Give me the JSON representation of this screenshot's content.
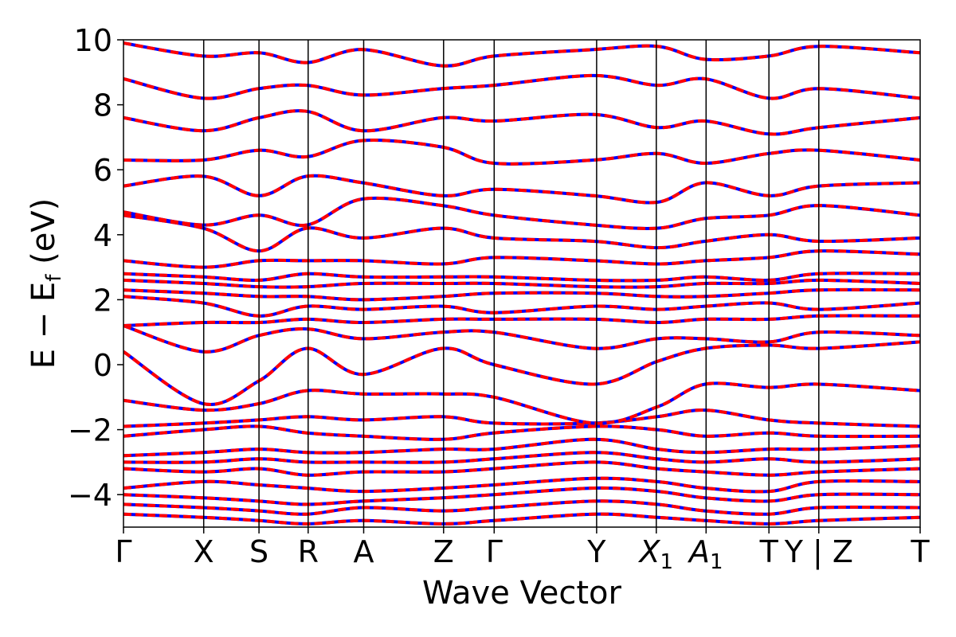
{
  "chart_data": {
    "type": "line",
    "title": "",
    "xlabel": "Wave Vector",
    "ylabel": "E − E",
    "ylabel_sub": "f",
    "ylabel_unit": " (eV)",
    "ylim": [
      -5,
      10
    ],
    "yticks": [
      {
        "value": -4,
        "label": "−4"
      },
      {
        "value": -2,
        "label": "−2"
      },
      {
        "value": 0,
        "label": "0"
      },
      {
        "value": 2,
        "label": "2"
      },
      {
        "value": 4,
        "label": "4"
      },
      {
        "value": 6,
        "label": "6"
      },
      {
        "value": 8,
        "label": "8"
      },
      {
        "value": 10,
        "label": "10"
      }
    ],
    "kpath_ticks": [
      {
        "k": 0.0,
        "label": "Γ",
        "sub": ""
      },
      {
        "k": 0.1007,
        "label": "X",
        "sub": ""
      },
      {
        "k": 0.1701,
        "label": "S",
        "sub": ""
      },
      {
        "k": 0.2318,
        "label": "R",
        "sub": ""
      },
      {
        "k": 0.3015,
        "label": "A",
        "sub": ""
      },
      {
        "k": 0.4018,
        "label": "Z",
        "sub": ""
      },
      {
        "k": 0.4653,
        "label": "Γ",
        "sub": ""
      },
      {
        "k": 0.5939,
        "label": "Y",
        "sub": ""
      },
      {
        "k": 0.6688,
        "label": "X",
        "sub": "1"
      },
      {
        "k": 0.7313,
        "label": "A",
        "sub": "1"
      },
      {
        "k": 0.8102,
        "label": "T",
        "sub": ""
      },
      {
        "k": 0.8728,
        "label": "Y | Z",
        "sub": ""
      },
      {
        "k": 1.0,
        "label": "T",
        "sub": ""
      }
    ],
    "grid": false,
    "legend": "none",
    "series": [
      {
        "color": "#0000ff",
        "style": "solid",
        "values": "all bands"
      },
      {
        "color": "#ff0000",
        "style": "dashed",
        "values": "all bands (overlay)"
      }
    ],
    "bands_approx": [
      [
        [
          0,
          -4.6
        ],
        [
          0.1,
          -4.7
        ],
        [
          0.17,
          -4.8
        ],
        [
          0.23,
          -4.9
        ],
        [
          0.3,
          -4.8
        ],
        [
          0.4,
          -4.9
        ],
        [
          0.465,
          -4.8
        ],
        [
          0.59,
          -4.6
        ],
        [
          0.67,
          -4.7
        ],
        [
          0.73,
          -4.8
        ],
        [
          0.81,
          -4.9
        ],
        [
          0.873,
          -4.8
        ],
        [
          1.0,
          -4.7
        ]
      ],
      [
        [
          0,
          -4.3
        ],
        [
          0.1,
          -4.4
        ],
        [
          0.17,
          -4.5
        ],
        [
          0.23,
          -4.6
        ],
        [
          0.3,
          -4.4
        ],
        [
          0.4,
          -4.5
        ],
        [
          0.465,
          -4.4
        ],
        [
          0.59,
          -4.2
        ],
        [
          0.67,
          -4.3
        ],
        [
          0.73,
          -4.5
        ],
        [
          0.81,
          -4.6
        ],
        [
          0.873,
          -4.4
        ],
        [
          1.0,
          -4.4
        ]
      ],
      [
        [
          0,
          -4.0
        ],
        [
          0.1,
          -4.1
        ],
        [
          0.17,
          -4.2
        ],
        [
          0.23,
          -4.3
        ],
        [
          0.3,
          -4.2
        ],
        [
          0.4,
          -4.1
        ],
        [
          0.465,
          -4.0
        ],
        [
          0.59,
          -3.8
        ],
        [
          0.67,
          -3.9
        ],
        [
          0.73,
          -4.1
        ],
        [
          0.81,
          -4.2
        ],
        [
          0.873,
          -4.0
        ],
        [
          1.0,
          -4.0
        ]
      ],
      [
        [
          0,
          -3.8
        ],
        [
          0.1,
          -3.6
        ],
        [
          0.17,
          -3.7
        ],
        [
          0.23,
          -3.8
        ],
        [
          0.3,
          -3.9
        ],
        [
          0.4,
          -3.8
        ],
        [
          0.465,
          -3.7
        ],
        [
          0.59,
          -3.5
        ],
        [
          0.67,
          -3.6
        ],
        [
          0.73,
          -3.8
        ],
        [
          0.81,
          -3.9
        ],
        [
          0.873,
          -3.6
        ],
        [
          1.0,
          -3.6
        ]
      ],
      [
        [
          0,
          -3.2
        ],
        [
          0.1,
          -3.3
        ],
        [
          0.17,
          -3.2
        ],
        [
          0.23,
          -3.4
        ],
        [
          0.3,
          -3.3
        ],
        [
          0.4,
          -3.3
        ],
        [
          0.465,
          -3.2
        ],
        [
          0.59,
          -3.0
        ],
        [
          0.67,
          -3.2
        ],
        [
          0.73,
          -3.3
        ],
        [
          0.81,
          -3.4
        ],
        [
          0.873,
          -3.3
        ],
        [
          1.0,
          -3.2
        ]
      ],
      [
        [
          0,
          -3.0
        ],
        [
          0.1,
          -3.0
        ],
        [
          0.17,
          -2.9
        ],
        [
          0.23,
          -3.0
        ],
        [
          0.3,
          -3.0
        ],
        [
          0.4,
          -3.0
        ],
        [
          0.465,
          -2.9
        ],
        [
          0.59,
          -2.7
        ],
        [
          0.67,
          -2.9
        ],
        [
          0.73,
          -3.0
        ],
        [
          0.81,
          -2.9
        ],
        [
          0.873,
          -3.0
        ],
        [
          1.0,
          -2.9
        ]
      ],
      [
        [
          0,
          -2.8
        ],
        [
          0.1,
          -2.7
        ],
        [
          0.17,
          -2.6
        ],
        [
          0.23,
          -2.7
        ],
        [
          0.3,
          -2.7
        ],
        [
          0.4,
          -2.6
        ],
        [
          0.465,
          -2.6
        ],
        [
          0.59,
          -2.3
        ],
        [
          0.67,
          -2.6
        ],
        [
          0.73,
          -2.7
        ],
        [
          0.81,
          -2.6
        ],
        [
          0.873,
          -2.6
        ],
        [
          1.0,
          -2.5
        ]
      ],
      [
        [
          0,
          -2.2
        ],
        [
          0.1,
          -2.0
        ],
        [
          0.17,
          -1.9
        ],
        [
          0.23,
          -2.1
        ],
        [
          0.3,
          -2.2
        ],
        [
          0.4,
          -2.3
        ],
        [
          0.465,
          -2.1
        ],
        [
          0.59,
          -1.9
        ],
        [
          0.67,
          -2.0
        ],
        [
          0.73,
          -2.2
        ],
        [
          0.81,
          -2.1
        ],
        [
          0.873,
          -2.2
        ],
        [
          1.0,
          -2.2
        ]
      ],
      [
        [
          0,
          -1.9
        ],
        [
          0.1,
          -1.8
        ],
        [
          0.17,
          -1.7
        ],
        [
          0.23,
          -1.6
        ],
        [
          0.3,
          -1.7
        ],
        [
          0.4,
          -1.6
        ],
        [
          0.465,
          -1.8
        ],
        [
          0.59,
          -1.8
        ],
        [
          0.67,
          -1.6
        ],
        [
          0.73,
          -1.4
        ],
        [
          0.81,
          -1.7
        ],
        [
          0.873,
          -1.8
        ],
        [
          1.0,
          -1.9
        ]
      ],
      [
        [
          0,
          -1.1
        ],
        [
          0.1,
          -1.4
        ],
        [
          0.17,
          -1.2
        ],
        [
          0.23,
          -0.8
        ],
        [
          0.3,
          -0.9
        ],
        [
          0.4,
          -0.9
        ],
        [
          0.465,
          -1.0
        ],
        [
          0.59,
          -1.8
        ],
        [
          0.67,
          -1.3
        ],
        [
          0.73,
          -0.6
        ],
        [
          0.81,
          -0.7
        ],
        [
          0.873,
          -0.6
        ],
        [
          1.0,
          -0.8
        ]
      ],
      [
        [
          0,
          0.4
        ],
        [
          0.1,
          -1.2
        ],
        [
          0.17,
          -0.5
        ],
        [
          0.23,
          0.5
        ],
        [
          0.3,
          -0.3
        ],
        [
          0.4,
          0.5
        ],
        [
          0.465,
          0.0
        ],
        [
          0.59,
          -0.6
        ],
        [
          0.67,
          0.1
        ],
        [
          0.73,
          0.5
        ],
        [
          0.81,
          0.6
        ],
        [
          0.873,
          0.5
        ],
        [
          1.0,
          0.7
        ]
      ],
      [
        [
          0,
          1.2
        ],
        [
          0.1,
          0.4
        ],
        [
          0.17,
          0.9
        ],
        [
          0.23,
          1.1
        ],
        [
          0.3,
          0.8
        ],
        [
          0.4,
          1.0
        ],
        [
          0.465,
          1.0
        ],
        [
          0.59,
          0.5
        ],
        [
          0.67,
          0.8
        ],
        [
          0.73,
          0.8
        ],
        [
          0.81,
          0.7
        ],
        [
          0.873,
          1.0
        ],
        [
          1.0,
          0.9
        ]
      ],
      [
        [
          0,
          1.2
        ],
        [
          0.1,
          1.3
        ],
        [
          0.17,
          1.3
        ],
        [
          0.23,
          1.4
        ],
        [
          0.3,
          1.3
        ],
        [
          0.4,
          1.4
        ],
        [
          0.465,
          1.4
        ],
        [
          0.59,
          1.4
        ],
        [
          0.67,
          1.3
        ],
        [
          0.73,
          1.4
        ],
        [
          0.81,
          1.4
        ],
        [
          0.873,
          1.5
        ],
        [
          1.0,
          1.5
        ]
      ],
      [
        [
          0,
          2.1
        ],
        [
          0.1,
          1.9
        ],
        [
          0.17,
          1.5
        ],
        [
          0.23,
          1.8
        ],
        [
          0.3,
          1.7
        ],
        [
          0.4,
          1.8
        ],
        [
          0.465,
          1.6
        ],
        [
          0.59,
          1.8
        ],
        [
          0.67,
          1.7
        ],
        [
          0.73,
          1.8
        ],
        [
          0.81,
          1.9
        ],
        [
          0.873,
          1.7
        ],
        [
          1.0,
          1.9
        ]
      ],
      [
        [
          0,
          2.3
        ],
        [
          0.1,
          2.2
        ],
        [
          0.17,
          2.1
        ],
        [
          0.23,
          2.1
        ],
        [
          0.3,
          2.0
        ],
        [
          0.4,
          2.1
        ],
        [
          0.465,
          2.2
        ],
        [
          0.59,
          2.2
        ],
        [
          0.67,
          2.1
        ],
        [
          0.73,
          2.1
        ],
        [
          0.81,
          2.2
        ],
        [
          0.873,
          2.3
        ],
        [
          1.0,
          2.3
        ]
      ],
      [
        [
          0,
          2.6
        ],
        [
          0.1,
          2.5
        ],
        [
          0.17,
          2.4
        ],
        [
          0.23,
          2.4
        ],
        [
          0.3,
          2.5
        ],
        [
          0.4,
          2.5
        ],
        [
          0.465,
          2.5
        ],
        [
          0.59,
          2.4
        ],
        [
          0.67,
          2.4
        ],
        [
          0.73,
          2.5
        ],
        [
          0.81,
          2.5
        ],
        [
          0.873,
          2.6
        ],
        [
          1.0,
          2.5
        ]
      ],
      [
        [
          0,
          2.8
        ],
        [
          0.1,
          2.7
        ],
        [
          0.17,
          2.6
        ],
        [
          0.23,
          2.8
        ],
        [
          0.3,
          2.7
        ],
        [
          0.4,
          2.7
        ],
        [
          0.465,
          2.7
        ],
        [
          0.59,
          2.6
        ],
        [
          0.67,
          2.6
        ],
        [
          0.73,
          2.7
        ],
        [
          0.81,
          2.6
        ],
        [
          0.873,
          2.8
        ],
        [
          1.0,
          2.8
        ]
      ],
      [
        [
          0,
          3.2
        ],
        [
          0.1,
          3.0
        ],
        [
          0.17,
          3.2
        ],
        [
          0.23,
          3.2
        ],
        [
          0.3,
          3.2
        ],
        [
          0.4,
          3.1
        ],
        [
          0.465,
          3.3
        ],
        [
          0.59,
          3.2
        ],
        [
          0.67,
          3.1
        ],
        [
          0.73,
          3.2
        ],
        [
          0.81,
          3.3
        ],
        [
          0.873,
          3.5
        ],
        [
          1.0,
          3.4
        ]
      ],
      [
        [
          0,
          4.6
        ],
        [
          0.1,
          4.2
        ],
        [
          0.17,
          3.5
        ],
        [
          0.23,
          4.2
        ],
        [
          0.3,
          3.9
        ],
        [
          0.4,
          4.2
        ],
        [
          0.465,
          3.9
        ],
        [
          0.59,
          3.8
        ],
        [
          0.67,
          3.6
        ],
        [
          0.73,
          3.8
        ],
        [
          0.81,
          4.0
        ],
        [
          0.873,
          3.8
        ],
        [
          1.0,
          3.9
        ]
      ],
      [
        [
          0,
          4.7
        ],
        [
          0.1,
          4.3
        ],
        [
          0.17,
          4.6
        ],
        [
          0.23,
          4.3
        ],
        [
          0.3,
          5.1
        ],
        [
          0.4,
          4.9
        ],
        [
          0.465,
          4.6
        ],
        [
          0.59,
          4.3
        ],
        [
          0.67,
          4.2
        ],
        [
          0.73,
          4.5
        ],
        [
          0.81,
          4.6
        ],
        [
          0.873,
          4.9
        ],
        [
          1.0,
          4.6
        ]
      ],
      [
        [
          0,
          5.5
        ],
        [
          0.1,
          5.8
        ],
        [
          0.17,
          5.2
        ],
        [
          0.23,
          5.8
        ],
        [
          0.3,
          5.6
        ],
        [
          0.4,
          5.2
        ],
        [
          0.465,
          5.4
        ],
        [
          0.59,
          5.2
        ],
        [
          0.67,
          5.0
        ],
        [
          0.73,
          5.6
        ],
        [
          0.81,
          5.2
        ],
        [
          0.873,
          5.5
        ],
        [
          1.0,
          5.6
        ]
      ],
      [
        [
          0,
          6.3
        ],
        [
          0.1,
          6.3
        ],
        [
          0.17,
          6.6
        ],
        [
          0.23,
          6.4
        ],
        [
          0.3,
          6.9
        ],
        [
          0.4,
          6.7
        ],
        [
          0.465,
          6.2
        ],
        [
          0.59,
          6.3
        ],
        [
          0.67,
          6.5
        ],
        [
          0.73,
          6.2
        ],
        [
          0.81,
          6.5
        ],
        [
          0.873,
          6.6
        ],
        [
          1.0,
          6.3
        ]
      ],
      [
        [
          0,
          7.6
        ],
        [
          0.1,
          7.2
        ],
        [
          0.17,
          7.6
        ],
        [
          0.23,
          7.8
        ],
        [
          0.3,
          7.2
        ],
        [
          0.4,
          7.6
        ],
        [
          0.465,
          7.5
        ],
        [
          0.59,
          7.7
        ],
        [
          0.67,
          7.3
        ],
        [
          0.73,
          7.5
        ],
        [
          0.81,
          7.1
        ],
        [
          0.873,
          7.3
        ],
        [
          1.0,
          7.6
        ]
      ],
      [
        [
          0,
          8.8
        ],
        [
          0.1,
          8.2
        ],
        [
          0.17,
          8.5
        ],
        [
          0.23,
          8.6
        ],
        [
          0.3,
          8.3
        ],
        [
          0.4,
          8.5
        ],
        [
          0.465,
          8.6
        ],
        [
          0.59,
          8.9
        ],
        [
          0.67,
          8.6
        ],
        [
          0.73,
          8.8
        ],
        [
          0.81,
          8.2
        ],
        [
          0.873,
          8.5
        ],
        [
          1.0,
          8.2
        ]
      ],
      [
        [
          0,
          9.9
        ],
        [
          0.1,
          9.5
        ],
        [
          0.17,
          9.6
        ],
        [
          0.23,
          9.3
        ],
        [
          0.3,
          9.7
        ],
        [
          0.4,
          9.2
        ],
        [
          0.465,
          9.5
        ],
        [
          0.59,
          9.7
        ],
        [
          0.67,
          9.8
        ],
        [
          0.73,
          9.4
        ],
        [
          0.81,
          9.5
        ],
        [
          0.873,
          9.8
        ],
        [
          1.0,
          9.6
        ]
      ]
    ]
  }
}
